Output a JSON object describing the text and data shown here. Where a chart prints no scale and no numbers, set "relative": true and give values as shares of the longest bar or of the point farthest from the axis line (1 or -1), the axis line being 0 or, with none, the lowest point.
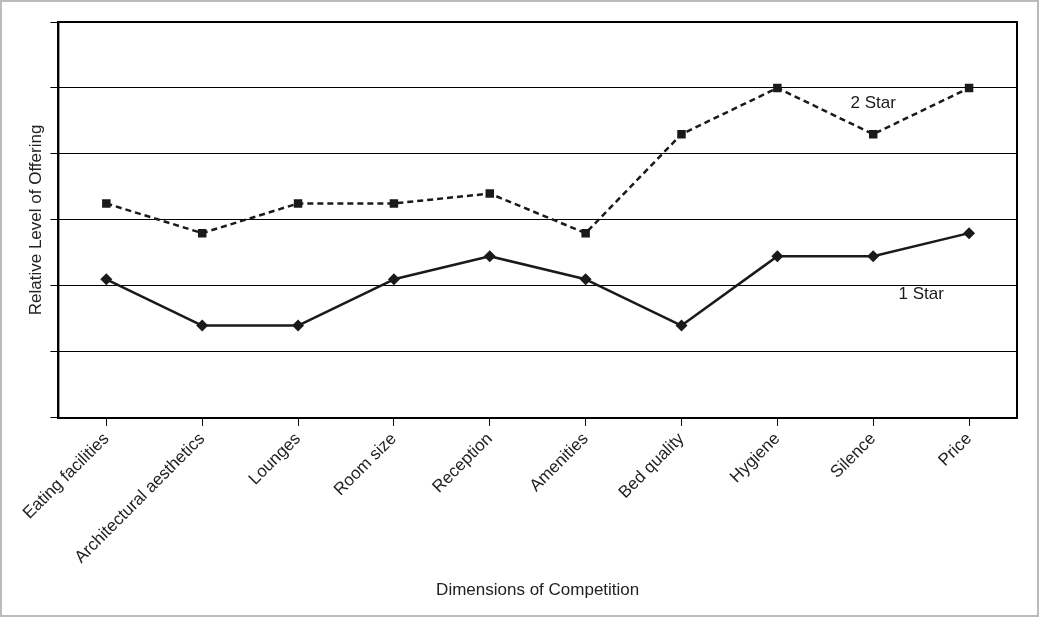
{
  "chart_data": {
    "type": "line",
    "xlabel": "Dimensions of Competition",
    "ylabel": "Relative Level of Offering",
    "relative": true,
    "grid": "y",
    "legend": false,
    "categories": [
      "Eating facilities",
      "Architectural aesthetics",
      "Lounges",
      "Room size",
      "Reception",
      "Amenities",
      "Bed quality",
      "Hygiene",
      "Silence",
      "Price"
    ],
    "series": [
      {
        "name": "2 Star",
        "color": "#1a1a1a",
        "marker": "square",
        "line_style": "dashed",
        "values": [
          0.65,
          0.56,
          0.65,
          0.65,
          0.68,
          0.56,
          0.86,
          1,
          0.86,
          1
        ]
      },
      {
        "name": "1 Star",
        "color": "#1a1a1a",
        "marker": "diamond",
        "line_style": "solid",
        "values": [
          0.42,
          0.28,
          0.28,
          0.42,
          0.49,
          0.42,
          0.28,
          0.49,
          0.49,
          0.56
        ]
      }
    ]
  }
}
